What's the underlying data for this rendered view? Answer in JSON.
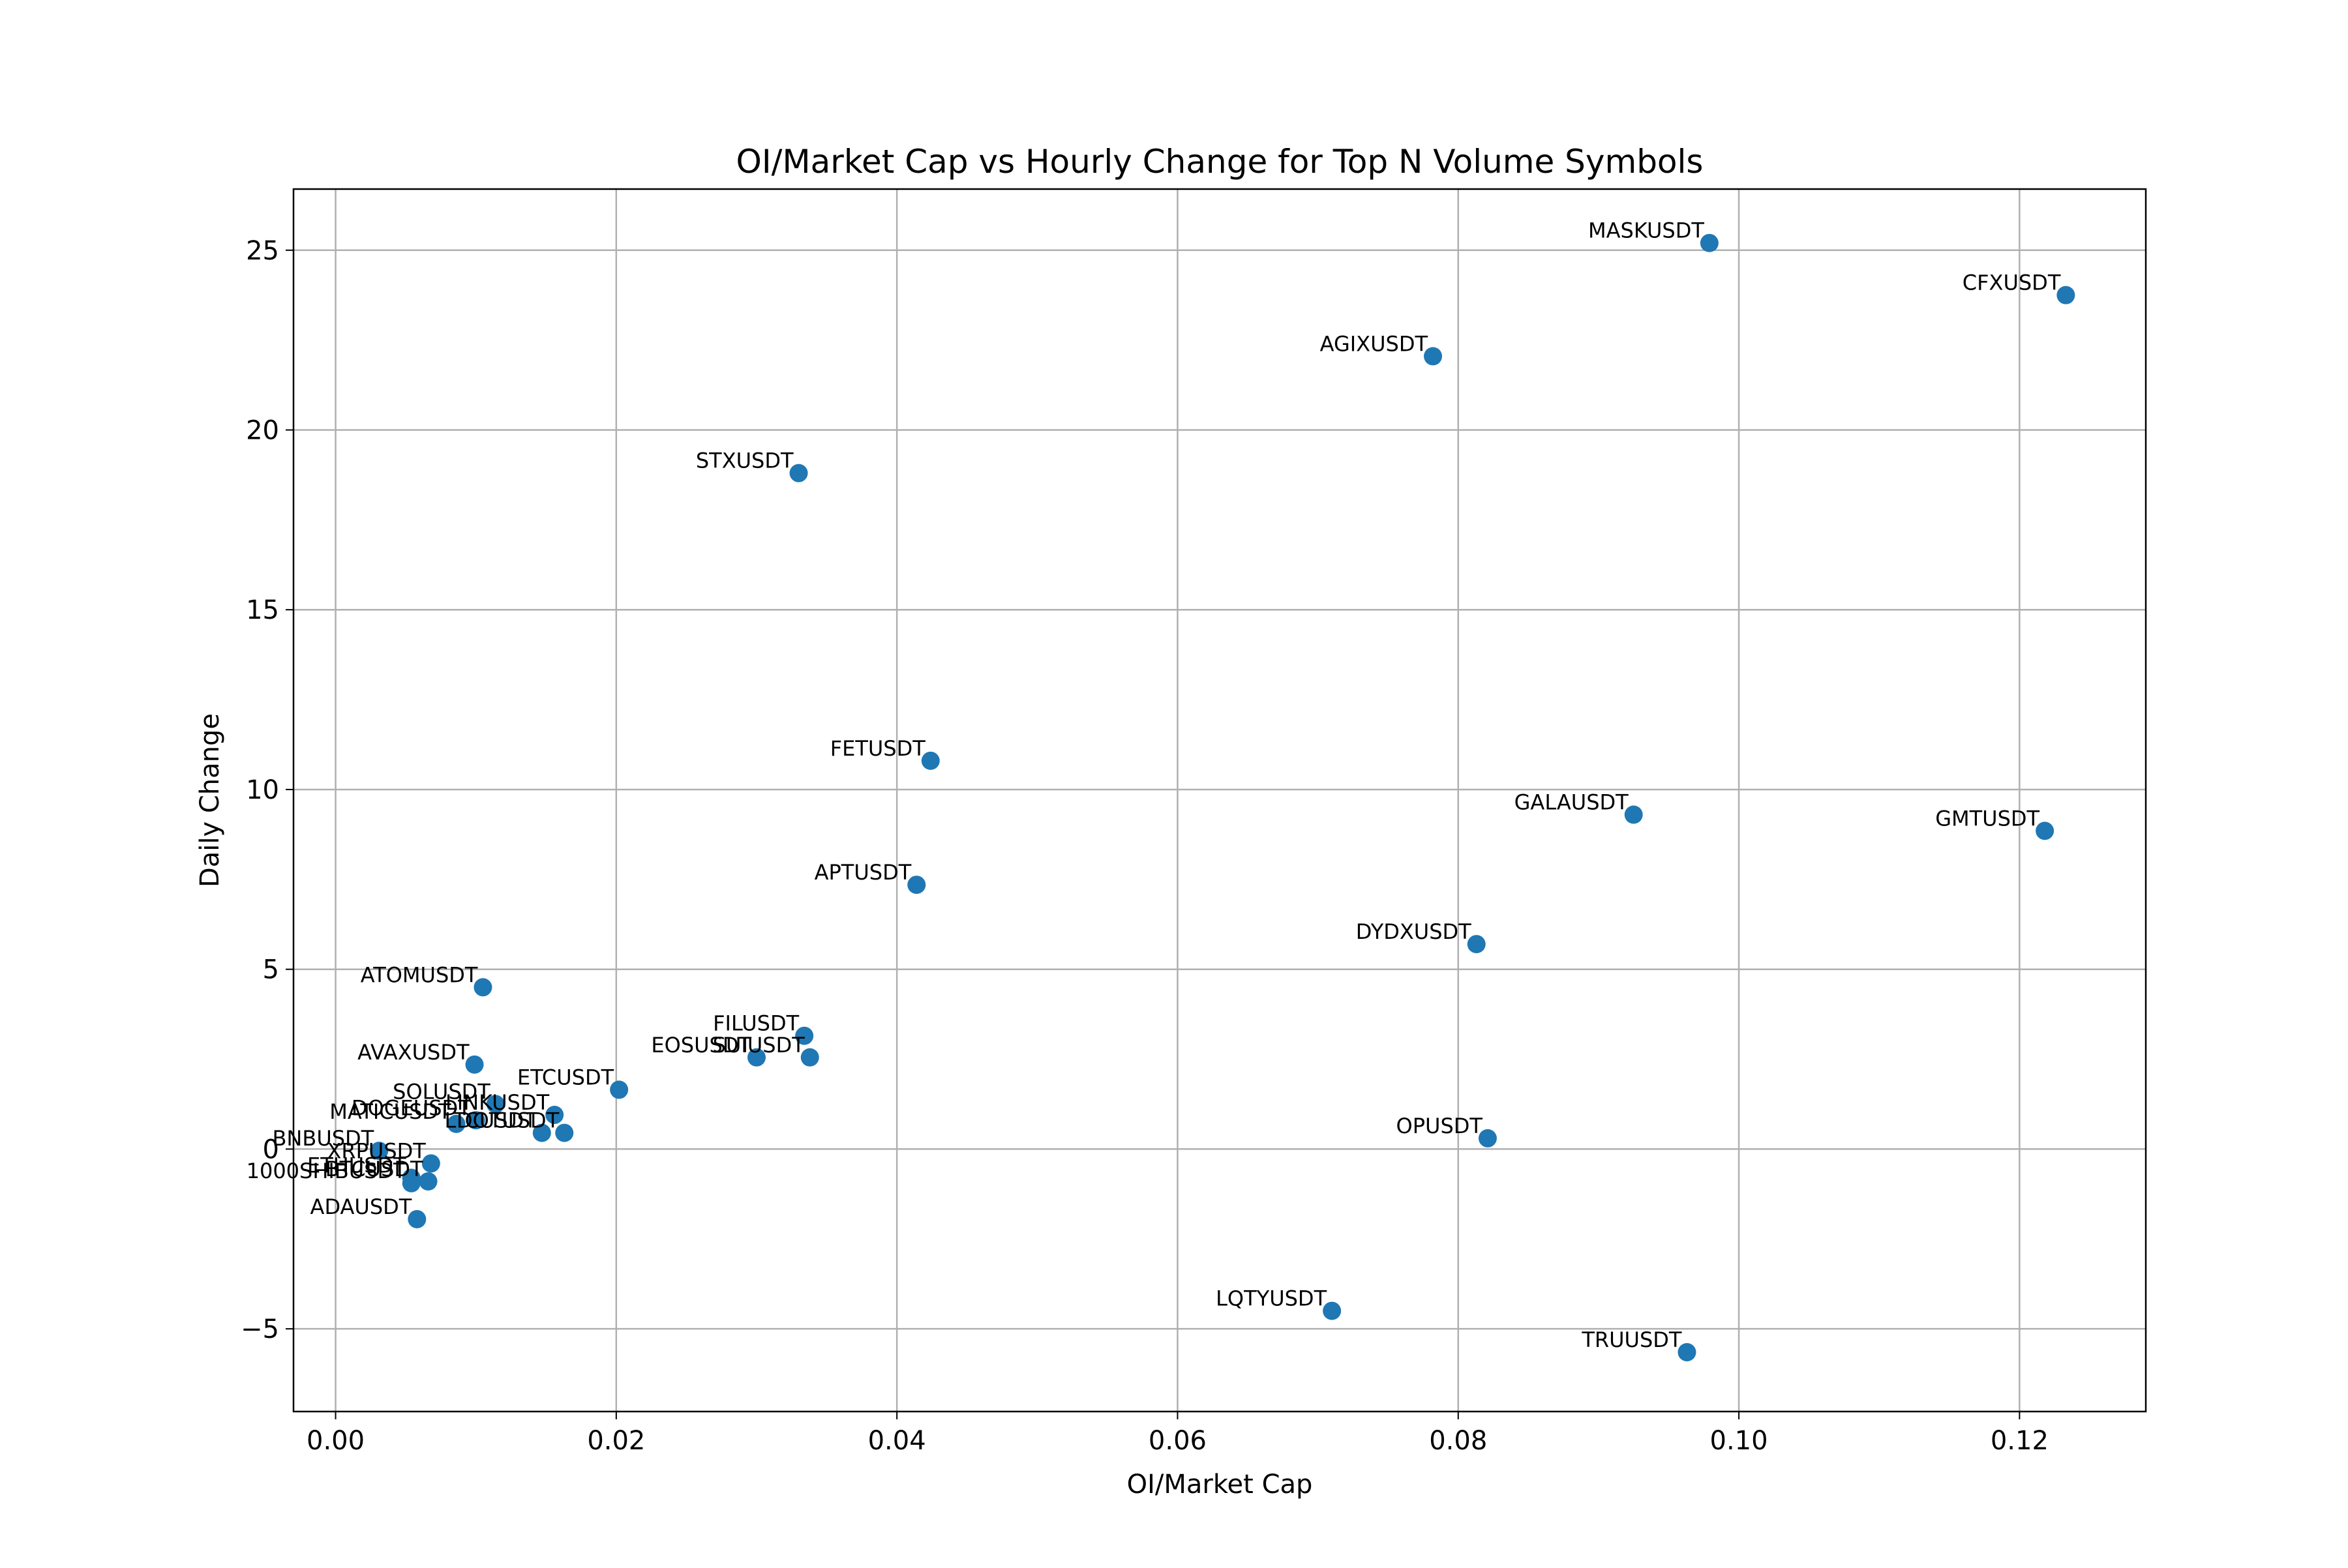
{
  "chart_data": {
    "type": "scatter",
    "title": "OI/Market Cap vs Hourly Change for Top N Volume Symbols",
    "xlabel": "OI/Market Cap",
    "ylabel": "Daily Change",
    "xlim": [
      -0.003,
      0.129
    ],
    "ylim": [
      -7.3,
      26.7
    ],
    "xticks": [
      0.0,
      0.02,
      0.04,
      0.06,
      0.08,
      0.1,
      0.12
    ],
    "xtick_labels": [
      "0.00",
      "0.02",
      "0.04",
      "0.06",
      "0.08",
      "0.10",
      "0.12"
    ],
    "yticks": [
      -5,
      0,
      5,
      10,
      15,
      20,
      25
    ],
    "ytick_labels": [
      "−5",
      "0",
      "5",
      "10",
      "15",
      "20",
      "25"
    ],
    "grid": true,
    "marker_color": "#1f77b4",
    "points": [
      {
        "label": "MASKUSDT",
        "x": 0.0979,
        "y": 25.2
      },
      {
        "label": "CFXUSDT",
        "x": 0.1233,
        "y": 23.75
      },
      {
        "label": "AGIXUSDT",
        "x": 0.0782,
        "y": 22.05
      },
      {
        "label": "STXUSDT",
        "x": 0.033,
        "y": 18.8
      },
      {
        "label": "FETUSDT",
        "x": 0.0424,
        "y": 10.8
      },
      {
        "label": "GALAUSDT",
        "x": 0.0925,
        "y": 9.3
      },
      {
        "label": "GMTUSDT",
        "x": 0.1218,
        "y": 8.85
      },
      {
        "label": "APTUSDT",
        "x": 0.0414,
        "y": 7.35
      },
      {
        "label": "DYDXUSDT",
        "x": 0.0813,
        "y": 5.7
      },
      {
        "label": "ATOMUSDT",
        "x": 0.0105,
        "y": 4.5
      },
      {
        "label": "FILUSDT",
        "x": 0.0334,
        "y": 3.15
      },
      {
        "label": "EOSUSDT",
        "x": 0.03,
        "y": 2.55
      },
      {
        "label": "SUIUSDT",
        "x": 0.0338,
        "y": 2.55
      },
      {
        "label": "AVAXUSDT",
        "x": 0.0099,
        "y": 2.35
      },
      {
        "label": "ETCUSDT",
        "x": 0.0202,
        "y": 1.65
      },
      {
        "label": "SOLUSDT",
        "x": 0.0114,
        "y": 1.25
      },
      {
        "label": "LINKUSDT",
        "x": 0.0156,
        "y": 0.95
      },
      {
        "label": "DOGEUSDT",
        "x": 0.01,
        "y": 0.8
      },
      {
        "label": "MATICUSDT",
        "x": 0.0086,
        "y": 0.7
      },
      {
        "label": "LTCUSDT",
        "x": 0.0147,
        "y": 0.45
      },
      {
        "label": "DOTUSDT",
        "x": 0.0163,
        "y": 0.45
      },
      {
        "label": "OPUSDT",
        "x": 0.0821,
        "y": 0.3
      },
      {
        "label": "BNBUSDT",
        "x": 0.0031,
        "y": -0.05
      },
      {
        "label": "XRPUSDT",
        "x": 0.0068,
        "y": -0.4
      },
      {
        "label": "ETHUSDT",
        "x": 0.0054,
        "y": -0.8
      },
      {
        "label": "BTCUSDT",
        "x": 0.0066,
        "y": -0.9
      },
      {
        "label": "1000SHIBUSDT",
        "x": 0.0054,
        "y": -0.95
      },
      {
        "label": "ADAUSDT",
        "x": 0.0058,
        "y": -1.95
      },
      {
        "label": "LQTYUSDT",
        "x": 0.071,
        "y": -4.5
      },
      {
        "label": "TRUUSDT",
        "x": 0.0963,
        "y": -5.65
      }
    ]
  }
}
